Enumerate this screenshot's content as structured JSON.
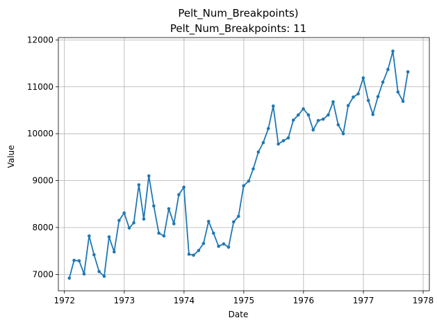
{
  "chart_data": {
    "type": "line",
    "title": "Pelt_Num_Breakpoints)",
    "subtitle": "Pelt_Num_Breakpoints: 11",
    "xlabel": "Date",
    "ylabel": "Value",
    "xlim": [
      "1971-11-25",
      "1978-02-08"
    ],
    "ylim": [
      6650,
      12050
    ],
    "grid": true,
    "x_ticks": [
      "1972",
      "1973",
      "1974",
      "1975",
      "1976",
      "1977",
      "1978"
    ],
    "y_ticks": [
      7000,
      8000,
      9000,
      10000,
      11000,
      12000
    ],
    "color": "#1f77b4",
    "x": [
      "1972-01-31",
      "1972-02-29",
      "1972-03-31",
      "1972-04-30",
      "1972-05-31",
      "1972-06-30",
      "1972-07-31",
      "1972-08-31",
      "1972-09-30",
      "1972-10-31",
      "1972-11-30",
      "1972-12-31",
      "1973-01-31",
      "1973-02-28",
      "1973-03-31",
      "1973-04-30",
      "1973-05-31",
      "1973-06-30",
      "1973-07-31",
      "1973-08-31",
      "1973-09-30",
      "1973-10-31",
      "1973-11-30",
      "1973-12-31",
      "1974-01-31",
      "1974-02-28",
      "1974-03-31",
      "1974-04-30",
      "1974-05-31",
      "1974-06-30",
      "1974-07-31",
      "1974-08-31",
      "1974-09-30",
      "1974-10-31",
      "1974-11-30",
      "1974-12-31",
      "1975-01-31",
      "1975-02-28",
      "1975-03-31",
      "1975-04-30",
      "1975-05-31",
      "1975-06-30",
      "1975-07-31",
      "1975-08-31",
      "1975-09-30",
      "1975-10-31",
      "1975-11-30",
      "1975-12-31",
      "1976-01-31",
      "1976-02-29",
      "1976-03-31",
      "1976-04-30",
      "1976-05-31",
      "1976-06-30",
      "1976-07-31",
      "1976-08-31",
      "1976-09-30",
      "1976-10-31",
      "1976-11-30",
      "1976-12-31",
      "1977-01-31",
      "1977-02-28",
      "1977-03-31",
      "1977-04-30",
      "1977-05-31",
      "1977-06-30",
      "1977-07-31",
      "1977-08-31",
      "1977-09-30"
    ],
    "y": [
      6920,
      7300,
      7290,
      7010,
      7820,
      7420,
      7060,
      6960,
      7800,
      7480,
      8150,
      8310,
      7990,
      8100,
      8910,
      8180,
      9100,
      8460,
      7880,
      7820,
      8400,
      8080,
      8700,
      8860,
      7430,
      7410,
      7510,
      7660,
      8130,
      7880,
      7600,
      7650,
      7580,
      8120,
      8240,
      8890,
      8990,
      9250,
      9610,
      9810,
      10110,
      10590,
      9780,
      9850,
      9910,
      10290,
      10400,
      10530,
      10400,
      10080,
      10280,
      10310,
      10400,
      10680,
      10190,
      10000,
      10600,
      10780,
      10850,
      11190,
      10710,
      10410,
      10790,
      11100,
      11370,
      11760,
      10890,
      10690,
      11320
    ]
  }
}
